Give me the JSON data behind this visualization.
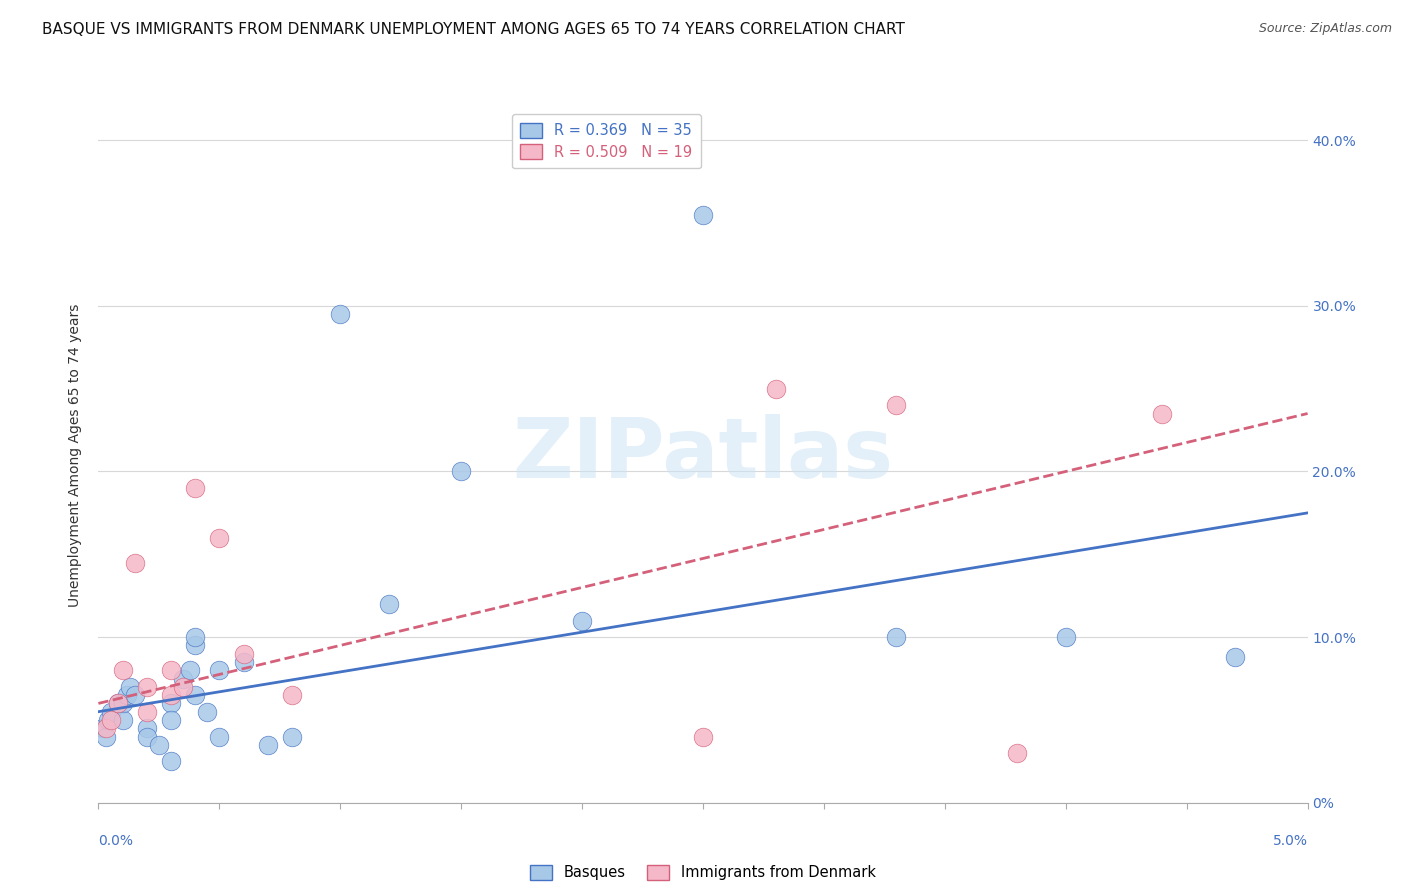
{
  "title": "BASQUE VS IMMIGRANTS FROM DENMARK UNEMPLOYMENT AMONG AGES 65 TO 74 YEARS CORRELATION CHART",
  "source": "Source: ZipAtlas.com",
  "ylabel": "Unemployment Among Ages 65 to 74 years",
  "legend_blue": "R = 0.369   N = 35",
  "legend_pink": "R = 0.509   N = 19",
  "legend_label_blue": "Basques",
  "legend_label_pink": "Immigrants from Denmark",
  "watermark": "ZIPatlas",
  "blue_scatter_x": [
    0.0002,
    0.0003,
    0.0004,
    0.0005,
    0.0008,
    0.001,
    0.001,
    0.0012,
    0.0013,
    0.0015,
    0.002,
    0.002,
    0.0025,
    0.003,
    0.003,
    0.003,
    0.0035,
    0.0038,
    0.004,
    0.004,
    0.004,
    0.0045,
    0.005,
    0.005,
    0.006,
    0.007,
    0.008,
    0.01,
    0.012,
    0.015,
    0.02,
    0.025,
    0.033,
    0.04,
    0.047
  ],
  "blue_scatter_y": [
    0.045,
    0.04,
    0.05,
    0.055,
    0.06,
    0.05,
    0.06,
    0.065,
    0.07,
    0.065,
    0.045,
    0.04,
    0.035,
    0.06,
    0.05,
    0.025,
    0.075,
    0.08,
    0.095,
    0.1,
    0.065,
    0.055,
    0.04,
    0.08,
    0.085,
    0.035,
    0.04,
    0.295,
    0.12,
    0.2,
    0.11,
    0.355,
    0.1,
    0.1,
    0.088
  ],
  "pink_scatter_x": [
    0.0003,
    0.0005,
    0.0008,
    0.001,
    0.0015,
    0.002,
    0.002,
    0.003,
    0.003,
    0.0035,
    0.004,
    0.005,
    0.006,
    0.008,
    0.025,
    0.028,
    0.033,
    0.038,
    0.044
  ],
  "pink_scatter_y": [
    0.045,
    0.05,
    0.06,
    0.08,
    0.145,
    0.055,
    0.07,
    0.08,
    0.065,
    0.07,
    0.19,
    0.16,
    0.09,
    0.065,
    0.04,
    0.25,
    0.24,
    0.03,
    0.235
  ],
  "blue_line_x": [
    0.0,
    0.05
  ],
  "blue_line_y": [
    0.055,
    0.175
  ],
  "pink_line_x": [
    0.0,
    0.05
  ],
  "pink_line_y": [
    0.06,
    0.235
  ],
  "xlim": [
    0.0,
    0.05
  ],
  "ylim": [
    0.0,
    0.42
  ],
  "scatter_size": 180,
  "blue_color": "#a8c8e8",
  "pink_color": "#f5b8c8",
  "blue_line_color": "#4472c4",
  "pink_line_color": "#d4607a",
  "background_color": "#ffffff",
  "grid_color": "#d8d8d8",
  "title_fontsize": 11,
  "axis_fontsize": 10,
  "tick_fontsize": 10
}
